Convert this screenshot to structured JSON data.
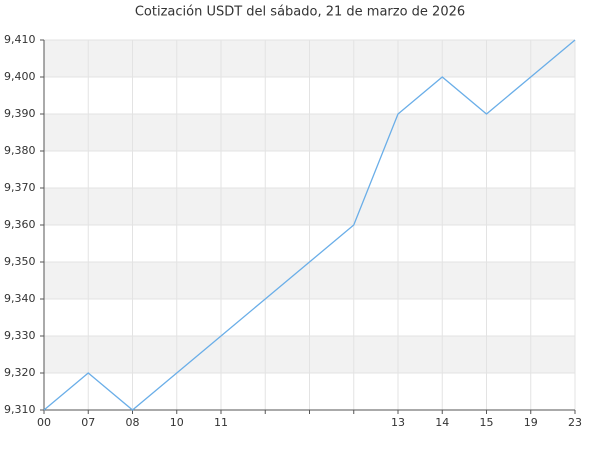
{
  "chart_data": {
    "type": "line",
    "title": "Cotización USDT del sábado, 21 de marzo de 2026",
    "categories": [
      "00",
      "07",
      "08",
      "10",
      "11",
      null,
      null,
      null,
      "13",
      "14",
      "15",
      "19",
      "23"
    ],
    "series": [
      {
        "color": "#6aaee8",
        "values": [
          9310,
          9320,
          9310,
          9320,
          9330,
          9340,
          9350,
          9360,
          9390,
          9400,
          9390,
          9400,
          9410
        ]
      }
    ],
    "ylim": [
      9310,
      9410
    ],
    "yticks": [
      {
        "value": 9310,
        "label": "9,310"
      },
      {
        "value": 9320,
        "label": "9,320"
      },
      {
        "value": 9330,
        "label": "9,330"
      },
      {
        "value": 9340,
        "label": "9,340"
      },
      {
        "value": 9350,
        "label": "9,350"
      },
      {
        "value": 9360,
        "label": "9,360"
      },
      {
        "value": 9370,
        "label": "9,370"
      },
      {
        "value": 9380,
        "label": "9,380"
      },
      {
        "value": 9390,
        "label": "9,390"
      },
      {
        "value": 9400,
        "label": "9,400"
      },
      {
        "value": 9410,
        "label": "9,410"
      }
    ],
    "grid": true
  }
}
